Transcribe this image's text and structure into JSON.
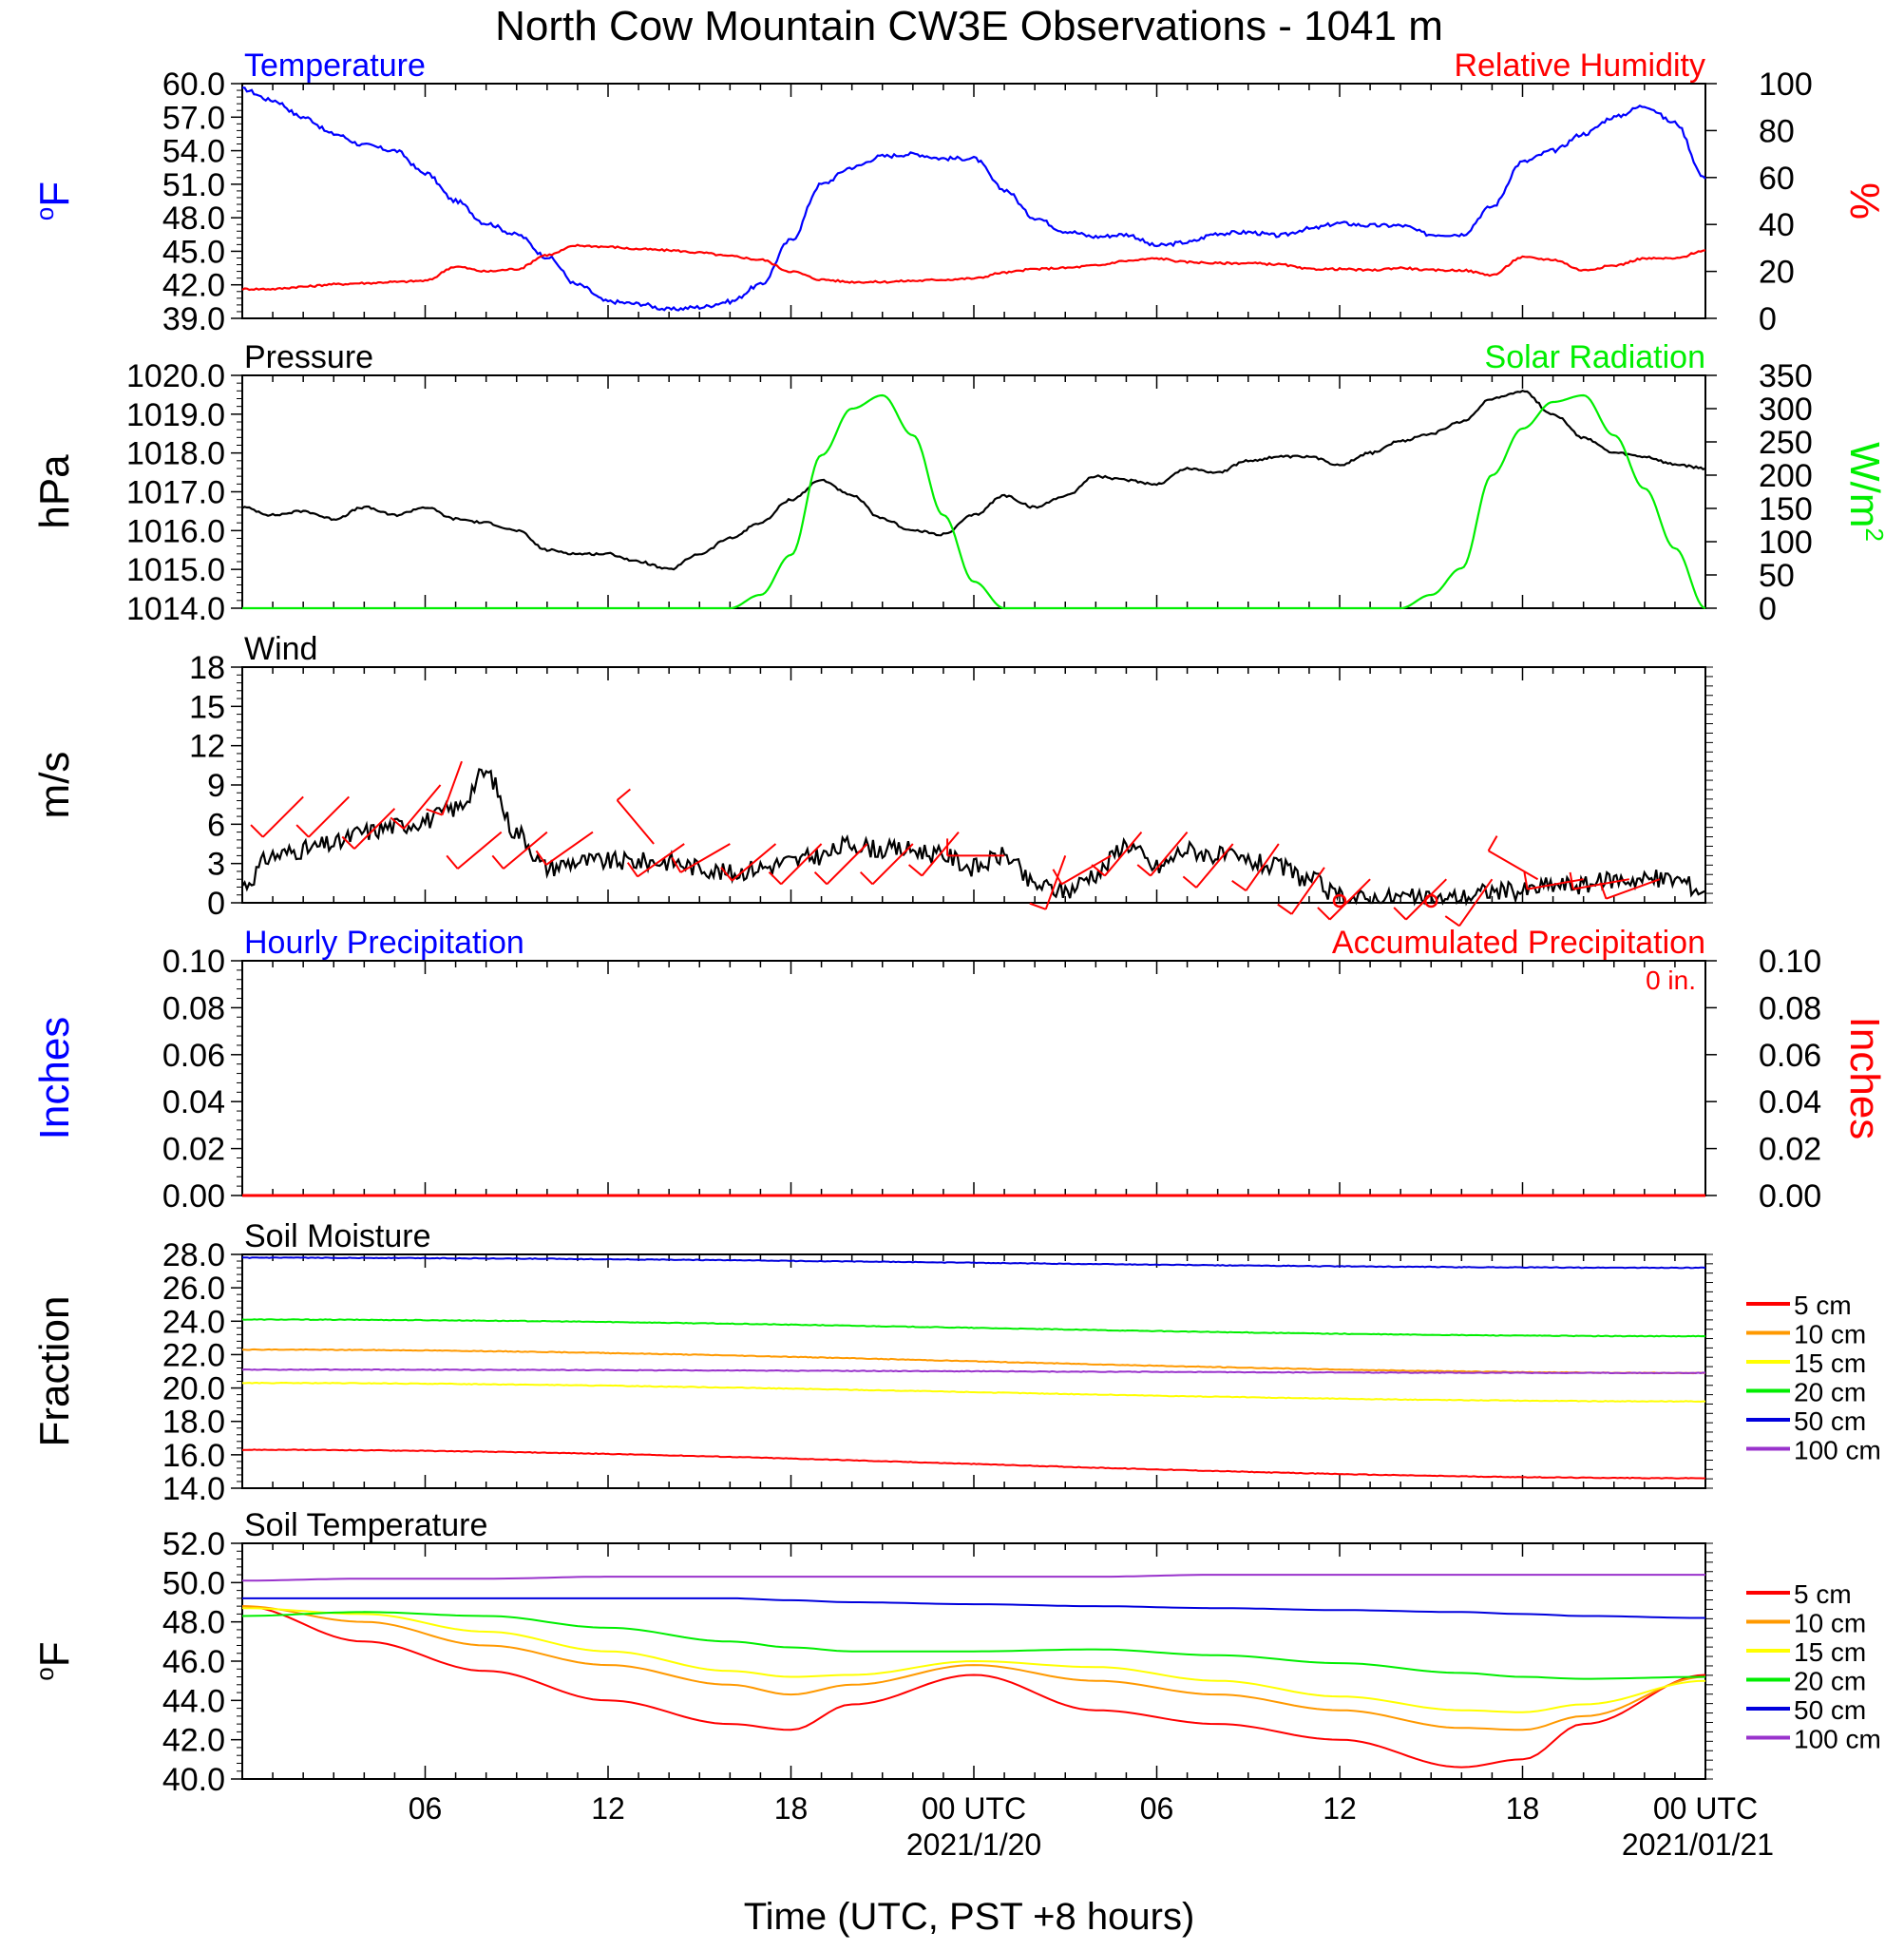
{
  "title": "North Cow Mountain CW3E Observations - 1041 m",
  "xlabel": "Time (UTC, PST +8 hours)",
  "x_ticks": [
    "06",
    "12",
    "18",
    "00 UTC",
    "06",
    "12",
    "18",
    "00 UTC"
  ],
  "x_dates": [
    "2021/1/20",
    "2021/01/21"
  ],
  "colors": {
    "temperature": "#0000ff",
    "relative_humidity": "#ff0000",
    "pressure": "#000000",
    "solar": "#00ee00",
    "wind": "#000000",
    "barbs": "#ff0000",
    "hourly_precip": "#0000ff",
    "accum_precip": "#ff0000",
    "depth_5": "#ff0000",
    "depth_10": "#ff9900",
    "depth_15": "#ffff00",
    "depth_20": "#00ee00",
    "depth_50": "#0000dd",
    "depth_100": "#9933cc"
  },
  "chart_data": [
    {
      "type": "line",
      "left_title": "Temperature",
      "right_title": "Relative Humidity",
      "ylabel": "oF",
      "ylabel_right": "%",
      "ylim": [
        39.0,
        60.0
      ],
      "ylim_right": [
        0,
        100
      ],
      "yticks": [
        "60.0",
        "57.0",
        "54.0",
        "51.0",
        "48.0",
        "45.0",
        "42.0",
        "39.0"
      ],
      "yticks_right": [
        "100",
        "80",
        "60",
        "40",
        "20",
        "0"
      ],
      "x_hours": [
        0,
        1,
        2,
        3,
        4,
        5,
        6,
        7,
        8,
        9,
        10,
        11,
        12,
        13,
        14,
        15,
        16,
        17,
        18,
        19,
        20,
        21,
        22,
        23,
        24,
        25,
        26,
        27,
        28,
        29,
        30,
        31,
        32,
        33,
        34,
        35,
        36,
        37,
        38,
        39,
        40,
        41,
        42,
        43,
        44,
        45,
        46,
        47,
        48
      ],
      "series": [
        {
          "name": "Temperature",
          "axis": "left",
          "values": [
            59.5,
            58.5,
            57.0,
            55.5,
            54.5,
            54.0,
            52.0,
            49.5,
            47.5,
            46.5,
            44.5,
            42.0,
            40.5,
            40.3,
            39.8,
            40.0,
            40.5,
            42.0,
            46.0,
            51.0,
            52.5,
            53.5,
            53.7,
            53.3,
            53.3,
            50.5,
            48.0,
            46.8,
            46.3,
            46.5,
            45.5,
            45.8,
            46.6,
            46.7,
            46.4,
            47.0,
            47.5,
            47.3,
            47.3,
            46.5,
            46.5,
            49.0,
            53.0,
            54.0,
            55.5,
            57.0,
            58.0,
            56.5,
            51.5
          ]
        },
        {
          "name": "Relative Humidity",
          "axis": "right",
          "values": [
            12.5,
            12.5,
            13.5,
            14.5,
            15.0,
            15.5,
            16.0,
            22.0,
            20.0,
            21.0,
            27.0,
            31.0,
            30.5,
            29.5,
            29.0,
            28.0,
            26.5,
            25.0,
            20.0,
            16.5,
            15.5,
            15.5,
            16.0,
            16.5,
            17.0,
            19.5,
            21.0,
            21.5,
            22.5,
            24.5,
            25.5,
            24.0,
            23.5,
            23.5,
            23.0,
            21.0,
            21.0,
            20.5,
            21.5,
            20.5,
            20.5,
            18.5,
            26.0,
            25.0,
            20.5,
            22.5,
            25.5,
            25.5,
            29.0
          ]
        }
      ]
    },
    {
      "type": "line",
      "left_title": "Pressure",
      "right_title": "Solar Radiation",
      "ylabel": "hPa",
      "ylabel_right": "W/m2",
      "ylim": [
        1014.0,
        1020.0
      ],
      "ylim_right": [
        0,
        350
      ],
      "yticks": [
        "1020.0",
        "1019.0",
        "1018.0",
        "1017.0",
        "1016.0",
        "1015.0",
        "1014.0"
      ],
      "yticks_right": [
        "350",
        "300",
        "250",
        "200",
        "150",
        "100",
        "50",
        "0"
      ],
      "x_hours": [
        0,
        1,
        2,
        3,
        4,
        5,
        6,
        7,
        8,
        9,
        10,
        11,
        12,
        13,
        14,
        15,
        16,
        17,
        18,
        19,
        20,
        21,
        22,
        23,
        24,
        25,
        26,
        27,
        28,
        29,
        30,
        31,
        32,
        33,
        34,
        35,
        36,
        37,
        38,
        39,
        40,
        41,
        42,
        43,
        44,
        45,
        46,
        47,
        48
      ],
      "series": [
        {
          "name": "Pressure",
          "axis": "left",
          "values": [
            1016.6,
            1016.4,
            1016.5,
            1016.3,
            1016.6,
            1016.4,
            1016.6,
            1016.3,
            1016.2,
            1016.0,
            1015.5,
            1015.4,
            1015.4,
            1015.2,
            1015.0,
            1015.4,
            1015.8,
            1016.2,
            1016.8,
            1017.3,
            1016.9,
            1016.3,
            1016.0,
            1015.9,
            1016.4,
            1016.9,
            1016.6,
            1016.9,
            1017.4,
            1017.3,
            1017.2,
            1017.6,
            1017.5,
            1017.8,
            1017.9,
            1017.9,
            1017.7,
            1018.0,
            1018.3,
            1018.5,
            1018.8,
            1019.4,
            1019.6,
            1019.0,
            1018.4,
            1018.0,
            1017.9,
            1017.7,
            1017.6
          ]
        },
        {
          "name": "Solar Radiation",
          "axis": "right",
          "values": [
            0,
            0,
            0,
            0,
            0,
            0,
            0,
            0,
            0,
            0,
            0,
            0,
            0,
            0,
            0,
            0,
            0,
            20,
            80,
            230,
            300,
            320,
            260,
            140,
            40,
            0,
            0,
            0,
            0,
            0,
            0,
            0,
            0,
            0,
            0,
            0,
            0,
            0,
            0,
            20,
            60,
            200,
            270,
            310,
            320,
            260,
            180,
            90,
            0
          ]
        }
      ]
    },
    {
      "type": "line",
      "left_title": "Wind",
      "ylabel": "m/s",
      "ylim": [
        0,
        20
      ],
      "yticks": [
        "18",
        "15",
        "12",
        "9",
        "6",
        "3",
        "0"
      ],
      "x_hours": [
        0,
        1,
        2,
        3,
        4,
        5,
        6,
        7,
        8,
        9,
        10,
        11,
        12,
        13,
        14,
        15,
        16,
        17,
        18,
        19,
        20,
        21,
        22,
        23,
        24,
        25,
        26,
        27,
        28,
        29,
        30,
        31,
        32,
        33,
        34,
        35,
        36,
        37,
        38,
        39,
        40,
        41,
        42,
        43,
        44,
        45,
        46,
        47,
        48
      ],
      "series": [
        {
          "name": "Wind Speed",
          "values": [
            1.5,
            4.0,
            4.5,
            5.0,
            6.0,
            6.5,
            7.0,
            8.0,
            11.0,
            6.0,
            3.0,
            3.5,
            3.5,
            3.5,
            3.5,
            3.0,
            2.5,
            3.0,
            3.5,
            4.0,
            5.0,
            4.5,
            4.5,
            4.0,
            3.0,
            4.0,
            1.5,
            1.0,
            2.5,
            5.0,
            3.0,
            4.5,
            4.0,
            3.5,
            3.0,
            2.0,
            0.5,
            0.3,
            0.5,
            0.2,
            0.5,
            1.0,
            1.0,
            1.5,
            1.5,
            2.0,
            2.0,
            2.0,
            1.0
          ]
        }
      ]
    },
    {
      "type": "bar",
      "left_title": "Hourly Precipitation",
      "right_title": "Accumulated Precipitation",
      "annotation": "0 in.",
      "ylabel": "Inches",
      "ylabel_right": "Inches",
      "ylim": [
        0.0,
        0.1
      ],
      "ylim_right": [
        0.0,
        0.1
      ],
      "yticks": [
        "0.10",
        "0.08",
        "0.06",
        "0.04",
        "0.02",
        "0.00"
      ],
      "yticks_right": [
        "0.10",
        "0.08",
        "0.06",
        "0.04",
        "0.02",
        "0.00"
      ],
      "total_in": 0,
      "series": [
        {
          "name": "Hourly Precipitation",
          "values": [
            0
          ]
        },
        {
          "name": "Accumulated Precipitation",
          "values": [
            0
          ]
        }
      ]
    },
    {
      "type": "line",
      "left_title": "Soil Moisture",
      "ylabel": "Fraction",
      "ylim": [
        14.0,
        28.0
      ],
      "yticks": [
        "28.0",
        "26.0",
        "24.0",
        "22.0",
        "20.0",
        "18.0",
        "16.0",
        "14.0"
      ],
      "x_hours": [
        0,
        48
      ],
      "series": [
        {
          "name": "5 cm",
          "values": [
            16.3,
            14.6
          ]
        },
        {
          "name": "10 cm",
          "values": [
            22.3,
            20.9
          ]
        },
        {
          "name": "15 cm",
          "values": [
            20.3,
            19.2
          ]
        },
        {
          "name": "20 cm",
          "values": [
            24.1,
            23.1
          ]
        },
        {
          "name": "50 cm",
          "values": [
            27.8,
            27.2
          ]
        },
        {
          "name": "100 cm",
          "values": [
            21.1,
            20.9
          ]
        }
      ]
    },
    {
      "type": "line",
      "left_title": "Soil Temperature",
      "ylabel": "oF",
      "ylim": [
        40.0,
        52.0
      ],
      "yticks": [
        "52.0",
        "50.0",
        "48.0",
        "46.0",
        "44.0",
        "42.0",
        "40.0"
      ],
      "x_hours": [
        0,
        4,
        8,
        12,
        16,
        18,
        20,
        24,
        28,
        32,
        36,
        40,
        42,
        44,
        48
      ],
      "series": [
        {
          "name": "5 cm",
          "values": [
            48.8,
            47.0,
            45.5,
            44.0,
            42.8,
            42.5,
            43.8,
            45.3,
            43.5,
            42.8,
            42.0,
            40.6,
            41.0,
            42.8,
            45.3
          ]
        },
        {
          "name": "10 cm",
          "values": [
            48.8,
            48.0,
            46.8,
            45.8,
            44.8,
            44.3,
            44.8,
            45.8,
            45.0,
            44.3,
            43.5,
            42.6,
            42.5,
            43.2,
            45.2
          ]
        },
        {
          "name": "15 cm",
          "values": [
            48.7,
            48.4,
            47.5,
            46.5,
            45.5,
            45.2,
            45.3,
            46.0,
            45.7,
            45.0,
            44.2,
            43.5,
            43.4,
            43.8,
            45.0
          ]
        },
        {
          "name": "20 cm",
          "values": [
            48.3,
            48.5,
            48.3,
            47.7,
            47.0,
            46.7,
            46.5,
            46.5,
            46.6,
            46.3,
            45.9,
            45.4,
            45.2,
            45.1,
            45.2
          ]
        },
        {
          "name": "50 cm",
          "values": [
            49.2,
            49.2,
            49.2,
            49.2,
            49.2,
            49.1,
            49.0,
            48.9,
            48.8,
            48.7,
            48.6,
            48.5,
            48.4,
            48.3,
            48.2
          ]
        },
        {
          "name": "100 cm",
          "values": [
            50.1,
            50.2,
            50.2,
            50.3,
            50.3,
            50.3,
            50.3,
            50.3,
            50.3,
            50.4,
            50.4,
            50.4,
            50.4,
            50.4,
            50.4
          ]
        }
      ]
    }
  ],
  "legend_labels": [
    "5 cm",
    "10 cm",
    "15 cm",
    "20 cm",
    "50 cm",
    "100 cm"
  ],
  "wind_barbs": [
    {
      "hour": 2,
      "speed": 9,
      "dir": 225
    },
    {
      "hour": 3.5,
      "speed": 9,
      "dir": 225
    },
    {
      "hour": 5,
      "speed": 8,
      "dir": 225
    },
    {
      "hour": 6.5,
      "speed": 10,
      "dir": 220
    },
    {
      "hour": 7.2,
      "speed": 12,
      "dir": 200
    },
    {
      "hour": 8.5,
      "speed": 6,
      "dir": 230
    },
    {
      "hour": 10,
      "speed": 6,
      "dir": 230
    },
    {
      "hour": 11.5,
      "speed": 6,
      "dir": 235
    },
    {
      "hour": 13.5,
      "speed": 5,
      "dir": 320
    },
    {
      "hour": 14.5,
      "speed": 5,
      "dir": 235
    },
    {
      "hour": 16,
      "speed": 5,
      "dir": 240
    },
    {
      "hour": 17.5,
      "speed": 5,
      "dir": 230
    },
    {
      "hour": 19,
      "speed": 5,
      "dir": 225
    },
    {
      "hour": 20.5,
      "speed": 5,
      "dir": 225
    },
    {
      "hour": 22,
      "speed": 5,
      "dir": 225
    },
    {
      "hour": 23.5,
      "speed": 6,
      "dir": 220
    },
    {
      "hour": 25,
      "speed": 4,
      "dir": 270
    },
    {
      "hour": 27,
      "speed": 4,
      "dir": 200
    },
    {
      "hour": 28.5,
      "speed": 4,
      "dir": 240
    },
    {
      "hour": 29.5,
      "speed": 6,
      "dir": 220
    },
    {
      "hour": 31,
      "speed": 6,
      "dir": 220
    },
    {
      "hour": 32.5,
      "speed": 5,
      "dir": 220
    },
    {
      "hour": 34,
      "speed": 5,
      "dir": 215
    },
    {
      "hour": 35.5,
      "speed": 3,
      "dir": 215
    },
    {
      "hour": 37,
      "speed": 2,
      "dir": 225
    },
    {
      "hour": 39.5,
      "speed": 2,
      "dir": 225
    },
    {
      "hour": 41,
      "speed": 2,
      "dir": 215
    },
    {
      "hour": 42.5,
      "speed": 2,
      "dir": 300
    },
    {
      "hour": 44,
      "speed": 2,
      "dir": 260
    },
    {
      "hour": 45.5,
      "speed": 2,
      "dir": 260
    },
    {
      "hour": 46.5,
      "speed": 2,
      "dir": 250
    }
  ],
  "calm_marks": [
    36,
    39
  ]
}
